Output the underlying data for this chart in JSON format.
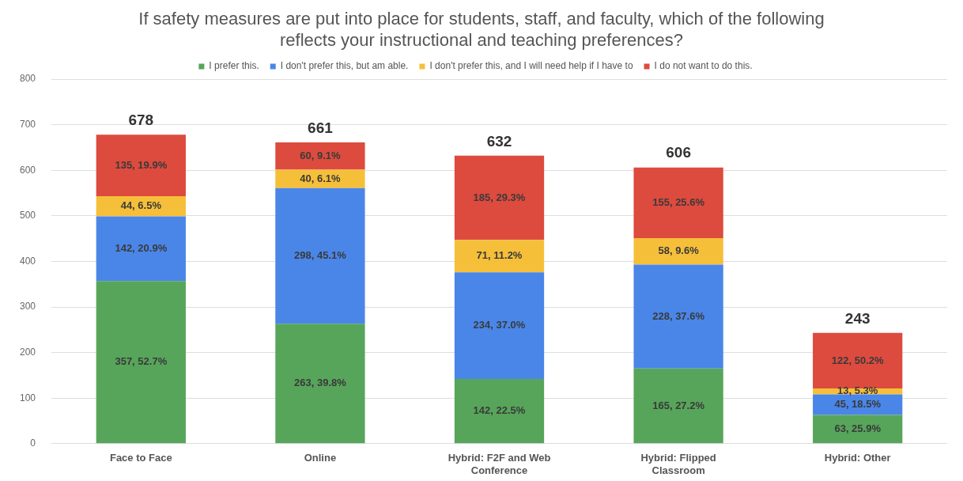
{
  "chart_data": {
    "type": "bar",
    "stacked": true,
    "title": "If safety measures are put into place for students, staff, and faculty, which of the following reflects your instructional and teaching preferences?",
    "categories": [
      "Face to Face",
      "Online",
      "Hybrid: F2F and Web Conference",
      "Hybrid: Flipped Classroom",
      "Hybrid: Other"
    ],
    "series": [
      {
        "name": "I prefer this.",
        "color": "#57a55a",
        "values": [
          357,
          263,
          142,
          165,
          63
        ],
        "value_labels": [
          "357, 52.7%",
          "263, 39.8%",
          "142, 22.5%",
          "165, 27.2%",
          "63, 25.9%"
        ]
      },
      {
        "name": "I don't prefer this, but am able.",
        "color": "#4a86e8",
        "values": [
          142,
          298,
          234,
          228,
          45
        ],
        "value_labels": [
          "142, 20.9%",
          "298, 45.1%",
          "234, 37.0%",
          "228, 37.6%",
          "45, 18.5%"
        ]
      },
      {
        "name": "I don't prefer this, and I will need help if I have to",
        "color": "#f6bf3a",
        "values": [
          44,
          40,
          71,
          58,
          13
        ],
        "value_labels": [
          "44, 6.5%",
          "40, 6.1%",
          "71, 11.2%",
          "58, 9.6%",
          "13, 5.3%"
        ]
      },
      {
        "name": "I do not want to do this.",
        "color": "#dd4b3e",
        "values": [
          135,
          60,
          185,
          155,
          122
        ],
        "value_labels": [
          "135, 19.9%",
          "60, 9.1%",
          "185, 29.3%",
          "155, 25.6%",
          "122, 50.2%"
        ]
      }
    ],
    "totals": [
      "678",
      "661",
      "632",
      "606",
      "243"
    ],
    "ylim": [
      0,
      800
    ],
    "yticks": [
      0,
      100,
      200,
      300,
      400,
      500,
      600,
      700,
      800
    ],
    "grid": "y",
    "legend": "top"
  }
}
